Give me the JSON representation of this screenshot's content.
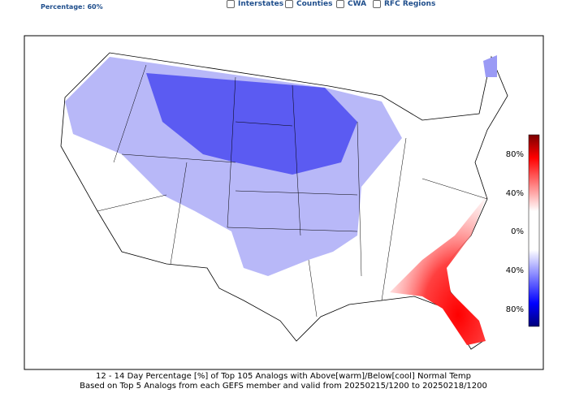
{
  "header": {
    "percentage_label": "Percentage: 60%"
  },
  "toggles": [
    "Interstates",
    "Counties",
    "CWA",
    "RFC Regions"
  ],
  "colorbar": {
    "tick_labels": [
      "80%",
      "40%",
      "0%",
      "40%",
      "80%"
    ]
  },
  "caption": {
    "line1": "12 - 14 Day  Percentage [%] of Top 105 Analogs with Above[warm]/Below[cool] Normal Temp",
    "line2": "Based on Top 5 Analogs from each GEFS member and valid from 20250215/1200 to 20250218/1200"
  }
}
